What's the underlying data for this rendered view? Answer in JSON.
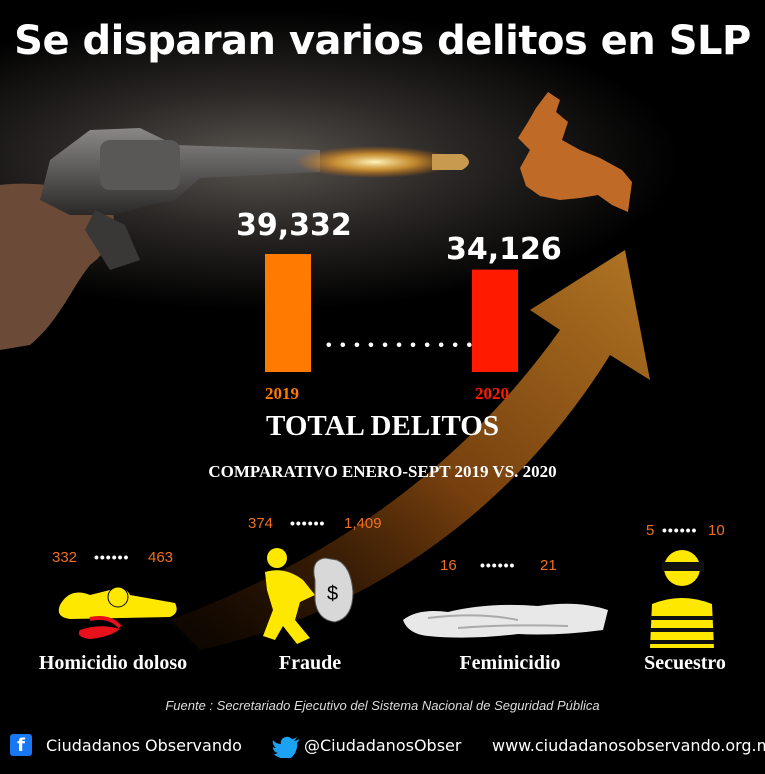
{
  "title": "Se disparan varios delitos en SLP",
  "chart_data": {
    "type": "bar",
    "categories": [
      "2019",
      "2020"
    ],
    "values": [
      39332,
      34126
    ],
    "value_labels": [
      "39,332",
      "34,126"
    ],
    "title": "TOTAL DELITOS",
    "colors": [
      "#ff7a00",
      "#ff1a00"
    ]
  },
  "comparison_title": "COMPARATIVO ENERO-SEPT 2019 VS. 2020",
  "crimes": [
    {
      "label": "Homicidio doloso",
      "v2019": "332",
      "v2020": "463"
    },
    {
      "label": "Fraude",
      "v2019": "374",
      "v2020": "1,409"
    },
    {
      "label": "Feminicidio",
      "v2019": "16",
      "v2020": "21"
    },
    {
      "label": "Secuestro",
      "v2019": "5",
      "v2020": "10"
    }
  ],
  "source": "Fuente : Secretariado Ejecutivo del Sistema Nacional de Seguridad Pública",
  "footer": {
    "facebook": "Ciudadanos Observando",
    "twitter": "@CiudadanosObser",
    "website": "www.ciudadanosobservando.org.mx"
  },
  "colors": {
    "accent": "#f07020",
    "bar2019": "#ff7a00",
    "bar2020": "#ff1a00",
    "icon_yellow": "#ffe800"
  }
}
